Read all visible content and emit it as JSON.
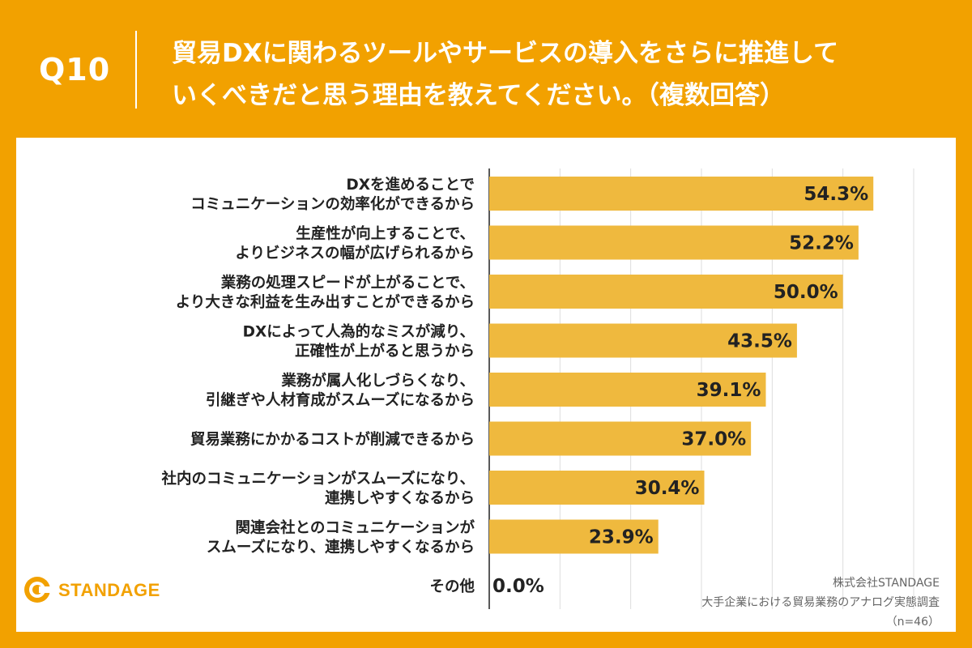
{
  "header": {
    "qnum": "Q10",
    "title_line1": "貿易DXに関わるツールやサービスの導入をさらに推進して",
    "title_line2": "いくべきだと思う理由を教えてください。（複数回答）"
  },
  "chart_data": {
    "type": "bar",
    "orientation": "horizontal",
    "categories": [
      [
        "DXを進めることで",
        "コミュニケーションの効率化ができるから"
      ],
      [
        "生産性が向上することで、",
        "よりビジネスの幅が広げられるから"
      ],
      [
        "業務の処理スピードが上がることで、",
        "より大きな利益を生み出すことができるから"
      ],
      [
        "DXによって人為的なミスが減り、",
        "正確性が上がると思うから"
      ],
      [
        "業務が属人化しづらくなり、",
        "引継ぎや人材育成がスムーズになるから"
      ],
      [
        "貿易業務にかかるコストが削減できるから"
      ],
      [
        "社内のコミュニケーションがスムーズになり、",
        "連携しやすくなるから"
      ],
      [
        "関連会社とのコミュニケーションが",
        "スムーズになり、連携しやすくなるから"
      ],
      [
        "その他"
      ]
    ],
    "values": [
      54.3,
      52.2,
      50.0,
      43.5,
      39.1,
      37.0,
      30.4,
      23.9,
      0.0
    ],
    "value_labels": [
      "54.3%",
      "52.2%",
      "50.0%",
      "43.5%",
      "39.1%",
      "37.0%",
      "30.4%",
      "23.9%",
      "0.0%"
    ],
    "xlim": [
      0,
      60
    ],
    "grid": true,
    "bar_color": "#efb93e"
  },
  "footer": {
    "logo_text": "STANDAGE",
    "company": "株式会社STANDAGE",
    "survey": "大手企業における貿易業務のアナログ実態調査",
    "n": "（n=46）"
  },
  "colors": {
    "background": "#f2a100",
    "bar": "#efb93e"
  }
}
